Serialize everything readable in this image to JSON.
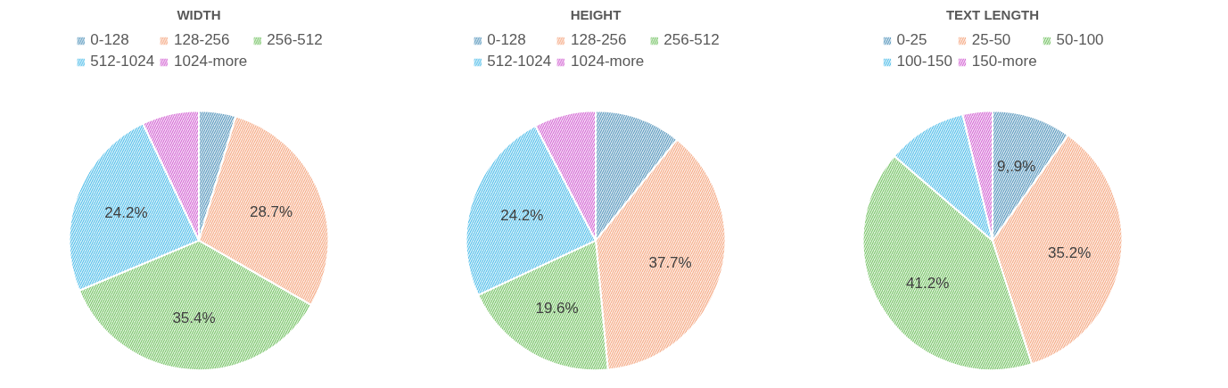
{
  "chart_data": [
    {
      "type": "pie",
      "title": "WIDTH",
      "legend": "top",
      "categories": [
        "0-128",
        "128-256",
        "256-512",
        "512-1024",
        "1024-more"
      ],
      "values": [
        4.6,
        28.7,
        35.4,
        24.2,
        7.1
      ],
      "value_labels": [
        null,
        "28.7%",
        "35.4%",
        "24.2%",
        null
      ],
      "colors": [
        "#4a8fb8",
        "#f4a27a",
        "#6cbf5a",
        "#45b9e8",
        "#d05ad0"
      ]
    },
    {
      "type": "pie",
      "title": "HEIGHT",
      "legend": "top",
      "categories": [
        "0-128",
        "128-256",
        "256-512",
        "512-1024",
        "1024-more"
      ],
      "values": [
        10.8,
        37.7,
        19.6,
        24.2,
        7.7
      ],
      "value_labels": [
        null,
        "37.7%",
        "19.6%",
        "24.2%",
        null
      ],
      "colors": [
        "#4a8fb8",
        "#f4a27a",
        "#6cbf5a",
        "#45b9e8",
        "#d05ad0"
      ]
    },
    {
      "type": "pie",
      "title": "TEXT LENGTH",
      "legend": "top",
      "categories": [
        "0-25",
        "25-50",
        "50-100",
        "100-150",
        "150-more"
      ],
      "values": [
        9.9,
        35.2,
        41.2,
        10.0,
        3.7
      ],
      "value_labels": [
        "9,.9%",
        "35.2%",
        "41.2%",
        null,
        null
      ],
      "colors": [
        "#4a8fb8",
        "#f4a27a",
        "#6cbf5a",
        "#45b9e8",
        "#d05ad0"
      ]
    }
  ]
}
